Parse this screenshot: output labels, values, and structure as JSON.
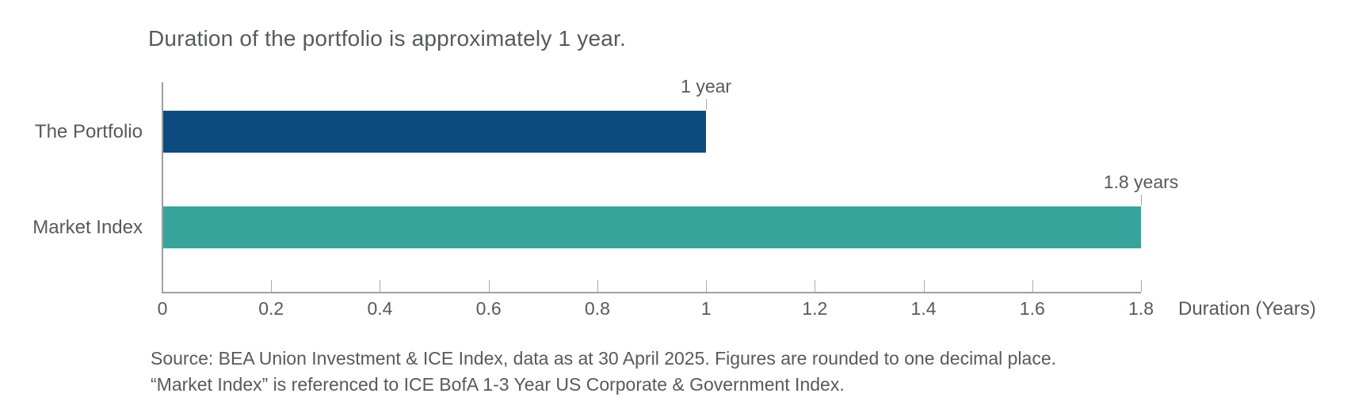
{
  "title": "Duration of the portfolio is approximately 1 year.",
  "footnotes": [
    "Source: BEA Union Investment & ICE Index, data as at 30 April 2025. Figures are rounded to one decimal place.",
    "“Market Index” is referenced to ICE BofA 1-3 Year US Corporate & Government Index."
  ],
  "chart_data": {
    "type": "bar",
    "orientation": "horizontal",
    "title": "Duration of the portfolio is approximately 1 year.",
    "categories": [
      "The Portfolio",
      "Market Index"
    ],
    "values": [
      1,
      1.8
    ],
    "value_labels": [
      "1 year",
      "1.8 years"
    ],
    "bar_colors": [
      "#0D4B7E",
      "#36A49A"
    ],
    "xlabel": "Duration (Years)",
    "xlim": [
      0,
      1.8
    ],
    "xticks": [
      0,
      0.2,
      0.4,
      0.6,
      0.8,
      1,
      1.2,
      1.4,
      1.6,
      1.8
    ],
    "xtick_labels": [
      "0",
      "0.2",
      "0.4",
      "0.6",
      "0.8",
      "1",
      "1.2",
      "1.4",
      "1.6",
      "1.8"
    ],
    "grid": false,
    "legend": false,
    "text_color": "#58595B",
    "axis_color": "#9DA0A3"
  }
}
